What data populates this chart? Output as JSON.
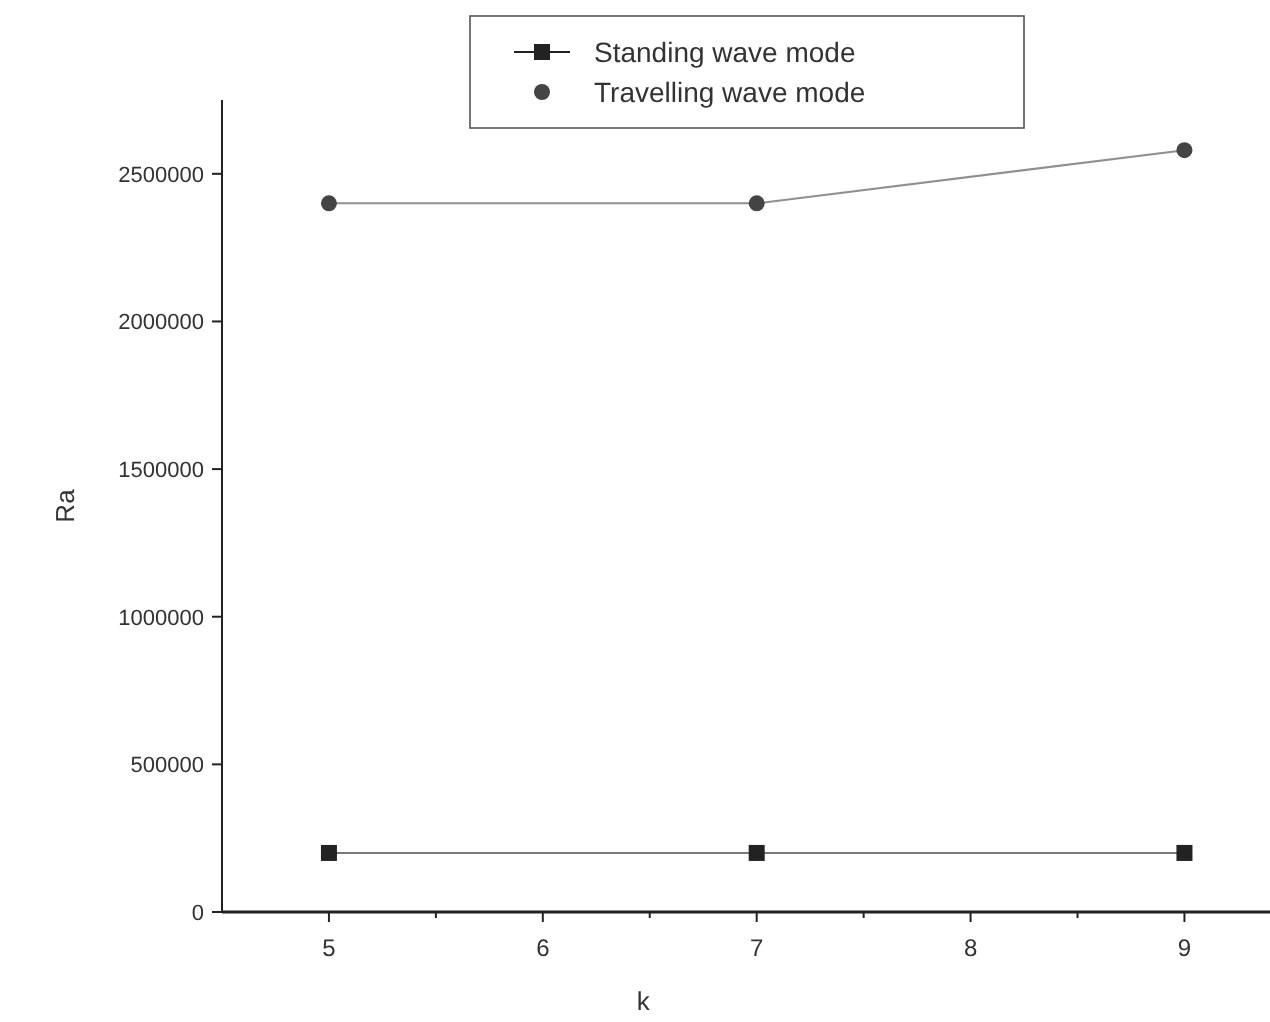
{
  "chart_data": {
    "type": "line",
    "xlabel": "k",
    "ylabel": "Ra",
    "x": [
      5,
      7,
      9
    ],
    "series": [
      {
        "name": "Standing wave mode",
        "color": "#222222",
        "values": [
          200000,
          200000,
          200000
        ],
        "marker": "square"
      },
      {
        "name": "Travelling wave mode",
        "color": "#444444",
        "values": [
          2400000,
          2400000,
          2580000
        ],
        "marker": "circle"
      }
    ],
    "xlim": [
      4.5,
      9.4
    ],
    "xticks": [
      5,
      {
        "value": 5.5,
        "label": null
      },
      6,
      {
        "value": 6.5,
        "label": null
      },
      7,
      {
        "value": 7.5,
        "label": null
      },
      8,
      {
        "value": 8.5,
        "label": null
      },
      9
    ],
    "ylim": [
      0,
      2750000
    ],
    "yticks": [
      0,
      500000,
      1000000,
      1500000,
      2000000,
      2500000
    ],
    "grid": false,
    "legend": "top"
  }
}
